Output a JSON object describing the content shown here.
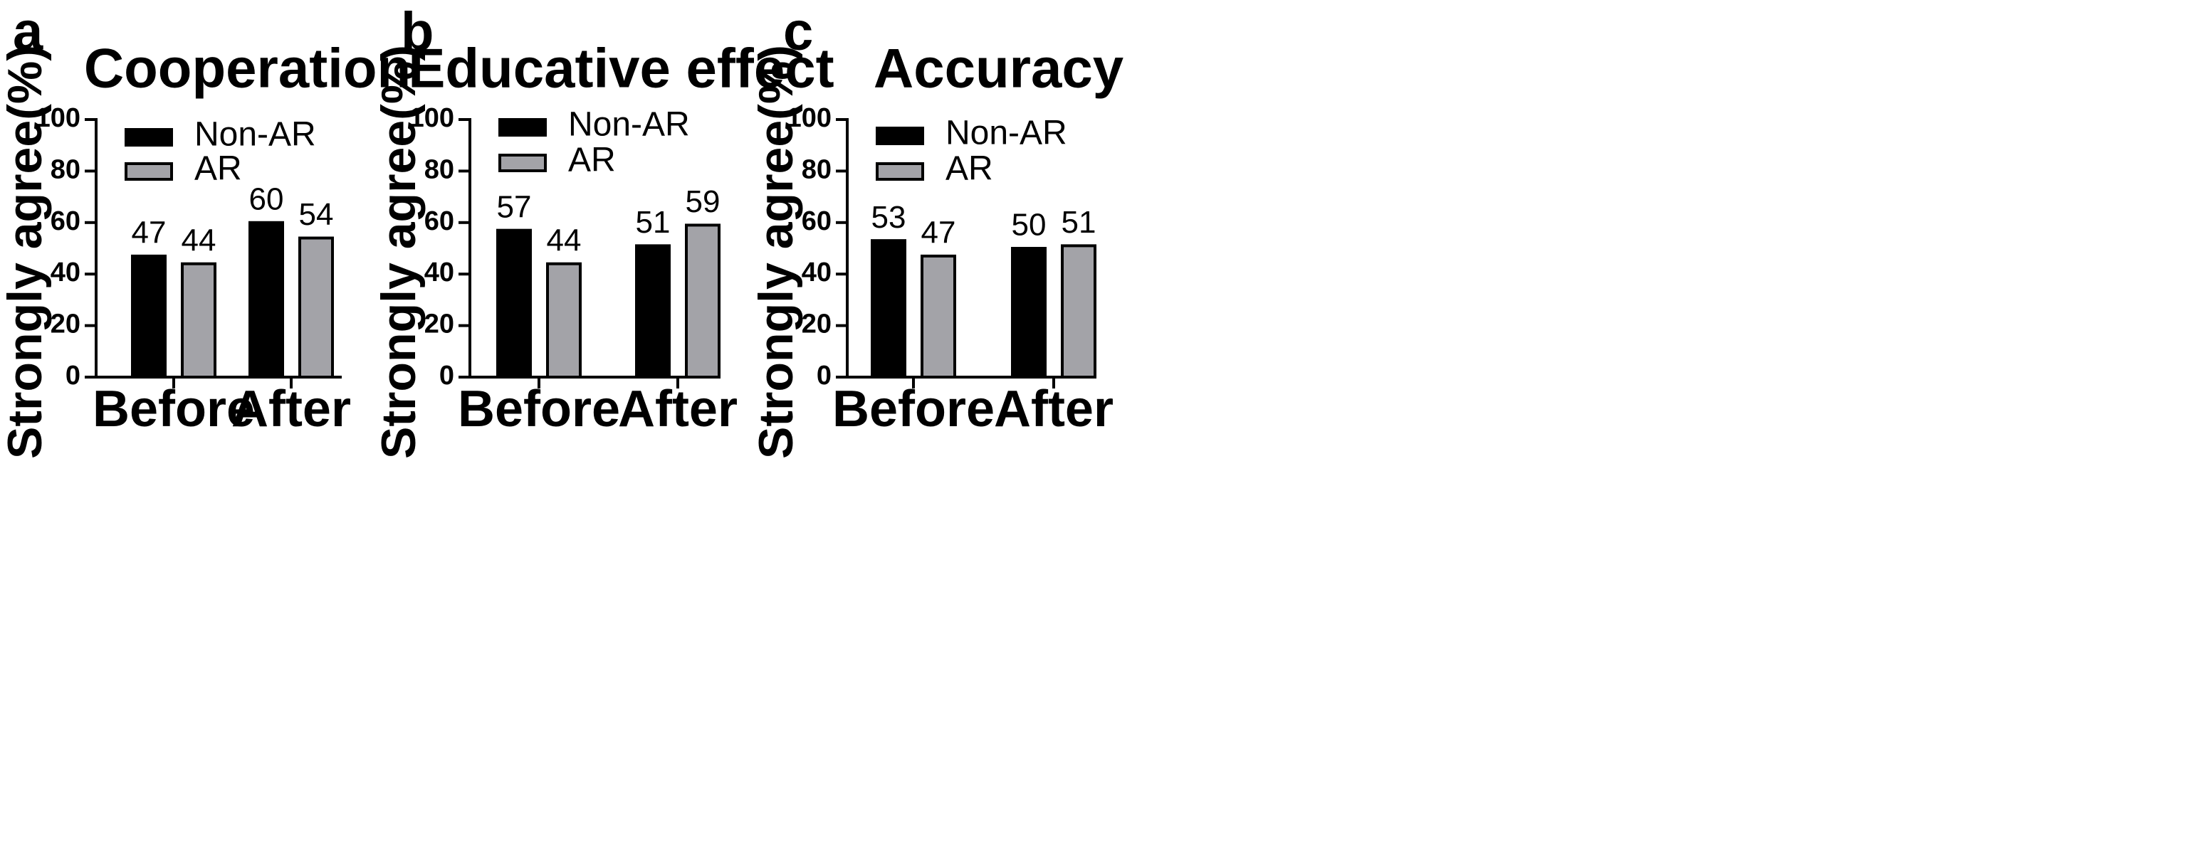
{
  "chart_data": [
    {
      "panel": "a",
      "type": "bar",
      "title": "Cooperation",
      "xlabel": "",
      "ylabel": "Strongly agree(%)",
      "ylim": [
        0,
        100
      ],
      "yticks": [
        0,
        20,
        40,
        60,
        80,
        100
      ],
      "categories": [
        "Before",
        "After"
      ],
      "series": [
        {
          "name": "Non-AR",
          "color": "#000000",
          "values": [
            47,
            60
          ]
        },
        {
          "name": "AR",
          "color": "#a3a3a8",
          "values": [
            44,
            54
          ]
        }
      ],
      "legend": "top-left"
    },
    {
      "panel": "b",
      "type": "bar",
      "title": "Educative effect",
      "xlabel": "",
      "ylabel": "Strongly agree(%)",
      "ylim": [
        0,
        100
      ],
      "yticks": [
        0,
        20,
        40,
        60,
        80,
        100
      ],
      "categories": [
        "Before",
        "After"
      ],
      "series": [
        {
          "name": "Non-AR",
          "color": "#000000",
          "values": [
            57,
            51
          ]
        },
        {
          "name": "AR",
          "color": "#a3a3a8",
          "values": [
            44,
            59
          ]
        }
      ],
      "legend": "top-left"
    },
    {
      "panel": "c",
      "type": "bar",
      "title": "Accuracy",
      "xlabel": "",
      "ylabel": "Strongly agree(%)",
      "ylim": [
        0,
        100
      ],
      "yticks": [
        0,
        20,
        40,
        60,
        80,
        100
      ],
      "categories": [
        "Before",
        "After"
      ],
      "series": [
        {
          "name": "Non-AR",
          "color": "#000000",
          "values": [
            53,
            50
          ]
        },
        {
          "name": "AR",
          "color": "#a3a3a8",
          "values": [
            47,
            51
          ]
        }
      ],
      "legend": "top-left"
    }
  ]
}
